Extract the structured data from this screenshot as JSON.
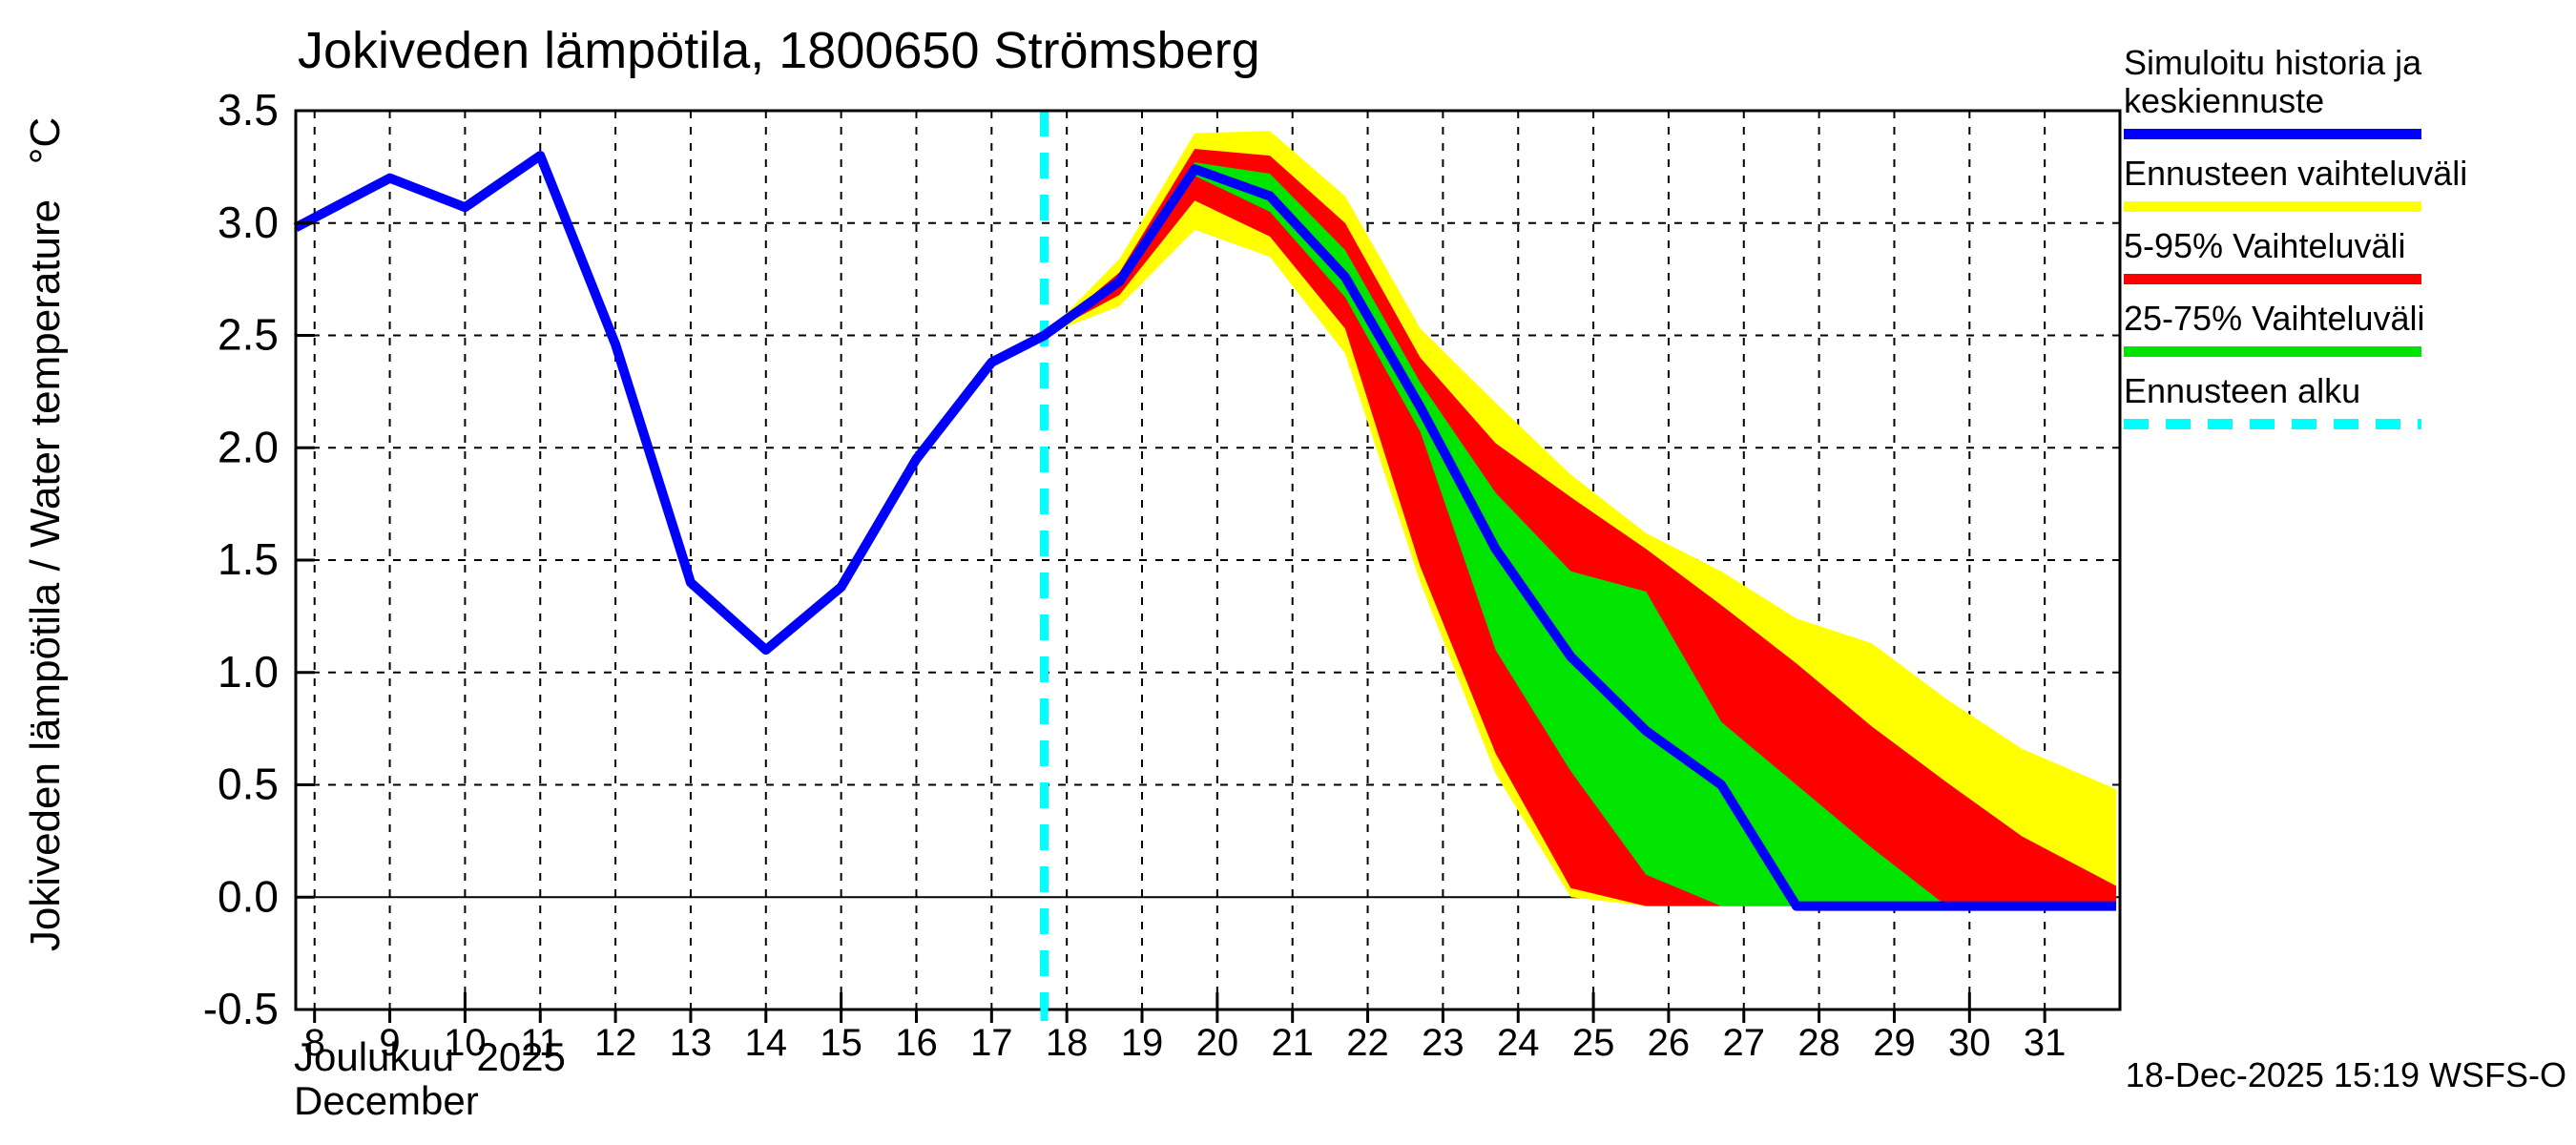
{
  "page": {
    "title": "Jokiveden lämpötila, 1800650 Strömsberg",
    "timestamp": "18-Dec-2025 15:19 WSFS-O"
  },
  "chart_data": {
    "type": "line",
    "title": "Jokiveden lämpötila, 1800650 Strömsberg",
    "ylabel": "Jokiveden lämpötila / Water temperature   °C",
    "xlabel_fi": "Joulukuu  2025",
    "xlabel_en": "December",
    "ylim": [
      -0.5,
      3.5
    ],
    "xlim_days": [
      7.75,
      32.0
    ],
    "grid": true,
    "y_ticks": [
      {
        "v": 3.5,
        "label": "3.5"
      },
      {
        "v": 3.0,
        "label": "3.0"
      },
      {
        "v": 2.5,
        "label": "2.5"
      },
      {
        "v": 2.0,
        "label": "2.0"
      },
      {
        "v": 1.5,
        "label": "1.5"
      },
      {
        "v": 1.0,
        "label": "1.0"
      },
      {
        "v": 0.5,
        "label": "0.5"
      },
      {
        "v": 0.0,
        "label": "0.0"
      },
      {
        "v": -0.5,
        "label": "-0.5"
      }
    ],
    "x_tick_days": [
      8,
      9,
      10,
      11,
      12,
      13,
      14,
      15,
      16,
      17,
      18,
      19,
      20,
      21,
      22,
      23,
      24,
      25,
      26,
      27,
      28,
      29,
      30,
      31
    ],
    "x_major_tick_days": [
      10,
      15,
      20,
      25,
      30
    ],
    "forecast_start_day": 17.7,
    "history": {
      "name": "Simuloitu historia",
      "days": [
        7.75,
        9,
        10,
        11,
        12,
        13,
        14,
        15,
        16,
        17,
        17.7
      ],
      "values": [
        2.98,
        3.2,
        3.07,
        3.3,
        2.46,
        1.4,
        1.1,
        1.38,
        1.95,
        2.38,
        2.5
      ]
    },
    "forecast": {
      "days": [
        17.7,
        18.7,
        19.7,
        20.7,
        21.7,
        22.7,
        23.7,
        24.7,
        25.7,
        26.7,
        27.7,
        28.7,
        29.7,
        30.7,
        31.95
      ],
      "median": [
        2.5,
        2.74,
        3.24,
        3.12,
        2.76,
        2.18,
        1.55,
        1.07,
        0.74,
        0.5,
        -0.04,
        -0.04,
        -0.04,
        -0.04,
        -0.04
      ],
      "p75": [
        2.5,
        2.76,
        3.27,
        3.22,
        2.88,
        2.29,
        1.8,
        1.45,
        1.36,
        0.78,
        0.5,
        0.22,
        -0.04,
        -0.04,
        -0.04
      ],
      "p25": [
        2.5,
        2.72,
        3.21,
        3.05,
        2.67,
        2.07,
        1.1,
        0.56,
        0.1,
        -0.04,
        -0.04,
        -0.04,
        -0.04,
        -0.04,
        -0.04
      ],
      "p95": [
        2.5,
        2.78,
        3.33,
        3.3,
        3.0,
        2.4,
        2.02,
        1.78,
        1.55,
        1.3,
        1.04,
        0.76,
        0.51,
        0.27,
        0.05
      ],
      "p05": [
        2.5,
        2.68,
        3.1,
        2.94,
        2.53,
        1.47,
        0.64,
        0.04,
        -0.04,
        -0.04,
        -0.04,
        -0.04,
        -0.04,
        -0.04,
        -0.04
      ],
      "max": [
        2.5,
        2.84,
        3.4,
        3.41,
        3.12,
        2.53,
        2.2,
        1.88,
        1.62,
        1.45,
        1.24,
        1.13,
        0.88,
        0.66,
        0.48
      ],
      "min": [
        2.5,
        2.63,
        2.97,
        2.85,
        2.42,
        1.4,
        0.55,
        0.0,
        -0.04,
        -0.04,
        -0.04,
        -0.04,
        -0.04,
        -0.04,
        -0.04
      ]
    },
    "colors": {
      "history_median": "#0000ff",
      "total_range": "#ffff00",
      "range_5_95": "#ff0000",
      "range_25_75": "#00e400",
      "forecast_start": "#00ffff",
      "grid": "#000000"
    },
    "legend": {
      "items": [
        {
          "lines": [
            "Simuloitu historia ja",
            "keskiennuste"
          ],
          "color": "#0000ff",
          "dashed": false
        },
        {
          "lines": [
            "Ennusteen vaihteluväli"
          ],
          "color": "#ffff00",
          "dashed": false
        },
        {
          "lines": [
            "5-95% Vaihteluväli"
          ],
          "color": "#ff0000",
          "dashed": false
        },
        {
          "lines": [
            "25-75% Vaihteluväli"
          ],
          "color": "#00e400",
          "dashed": false
        },
        {
          "lines": [
            "Ennusteen alku"
          ],
          "color": "#00ffff",
          "dashed": true
        }
      ]
    }
  }
}
